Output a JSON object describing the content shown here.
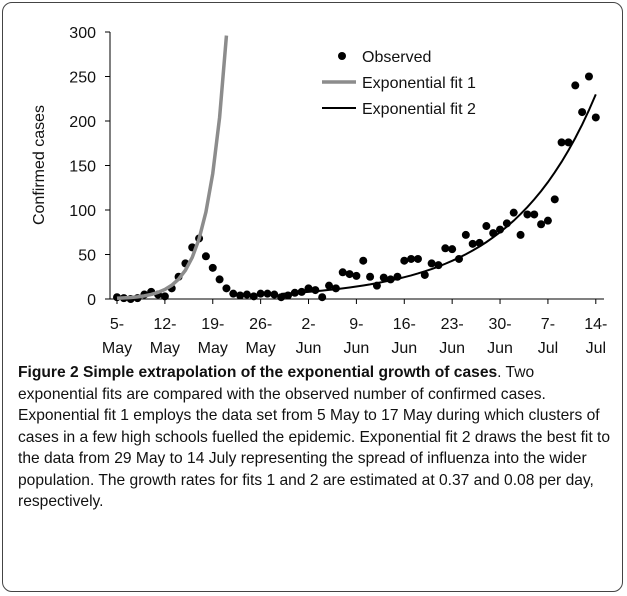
{
  "chart_data": {
    "type": "line",
    "y_label": "Confirmed cases",
    "categories": [
      "5-May",
      null,
      null,
      null,
      null,
      null,
      null,
      "12-May",
      null,
      null,
      null,
      null,
      null,
      null,
      "19-May",
      null,
      null,
      null,
      null,
      null,
      null,
      "26-May",
      null,
      null,
      null,
      null,
      null,
      null,
      "2-Jun",
      null,
      null,
      null,
      null,
      null,
      null,
      "9-Jun",
      null,
      null,
      null,
      null,
      null,
      null,
      "16-Jun",
      null,
      null,
      null,
      null,
      null,
      null,
      "23-Jun",
      null,
      null,
      null,
      null,
      null,
      null,
      "30-Jun",
      null,
      null,
      null,
      null,
      null,
      null,
      "7-Jul",
      null,
      null,
      null,
      null,
      null,
      null,
      "14-Jul"
    ],
    "series": [
      {
        "name": "Observed",
        "color": "#000000",
        "style": "markers",
        "values": [
          2,
          1,
          0,
          1,
          5,
          8,
          5,
          3,
          12,
          25,
          40,
          58,
          68,
          48,
          35,
          22,
          12,
          6,
          4,
          5,
          3,
          6,
          6,
          5,
          2,
          4,
          7,
          8,
          12,
          10,
          2,
          15,
          12,
          30,
          28,
          26,
          43,
          25,
          15,
          24,
          22,
          25,
          43,
          45,
          45,
          27,
          40,
          38,
          57,
          56,
          45,
          72,
          62,
          63,
          82,
          74,
          78,
          85,
          97,
          72,
          95,
          95,
          84,
          88,
          112,
          176,
          176,
          240,
          210,
          250,
          204
        ]
      },
      {
        "name": "Exponential fit 1",
        "color": "#8c8c8c",
        "style": "line",
        "values": [
          0.8,
          1.2,
          1.7,
          2.4,
          3.5,
          5.1,
          7.4,
          10.7,
          15.4,
          22.3,
          32.3,
          46.7,
          67.6,
          97.7,
          141,
          204,
          296,
          null,
          null,
          null,
          null,
          null,
          null,
          null,
          null,
          null,
          null,
          null,
          null,
          null,
          null,
          null,
          null,
          null,
          null,
          null,
          null,
          null,
          null,
          null,
          null,
          null,
          null,
          null,
          null,
          null,
          null,
          null,
          null,
          null,
          null,
          null,
          null,
          null,
          null,
          null,
          null,
          null,
          null,
          null,
          null,
          null,
          null,
          null,
          null,
          null,
          null,
          null,
          null,
          null,
          null
        ]
      },
      {
        "name": "Exponential fit 2",
        "color": "#000000",
        "style": "line",
        "values": [
          null,
          null,
          null,
          null,
          null,
          null,
          null,
          null,
          null,
          null,
          null,
          null,
          null,
          null,
          null,
          null,
          null,
          null,
          null,
          null,
          null,
          null,
          null,
          null,
          5.8,
          6.3,
          6.8,
          7.4,
          8.0,
          8.7,
          9.4,
          10.2,
          11.0,
          11.9,
          12.9,
          14.0,
          15.2,
          16.4,
          17.8,
          19.3,
          20.9,
          22.6,
          24.5,
          26.5,
          28.7,
          31.1,
          33.7,
          36.5,
          39.6,
          42.9,
          46.4,
          50.3,
          54.5,
          59.0,
          63.9,
          69.3,
          75.0,
          81.3,
          88.0,
          95.4,
          103.3,
          111.9,
          121.2,
          131.3,
          142.3,
          154.1,
          167.0,
          180.9,
          195.9,
          212.2,
          229.9
        ]
      }
    ],
    "ylim": [
      0,
      300
    ],
    "yticks": [
      0,
      50,
      100,
      150,
      200,
      250,
      300
    ],
    "grid": false,
    "legend": "upper right"
  },
  "caption": {
    "title": "Figure 2 Simple extrapolation of the exponential growth of cases",
    "text": ". Two exponential fits are compared with the observed number of confirmed cases. Exponential fit 1 employs the data set from 5 May to 17 May during which clusters of cases in a few high schools fuelled the epidemic. Exponential fit 2 draws the best fit to the data from 29 May to 14 July representing the spread of influenza into the wider population. The growth rates for fits 1 and 2 are estimated at 0.37 and 0.08 per day, respectively."
  }
}
